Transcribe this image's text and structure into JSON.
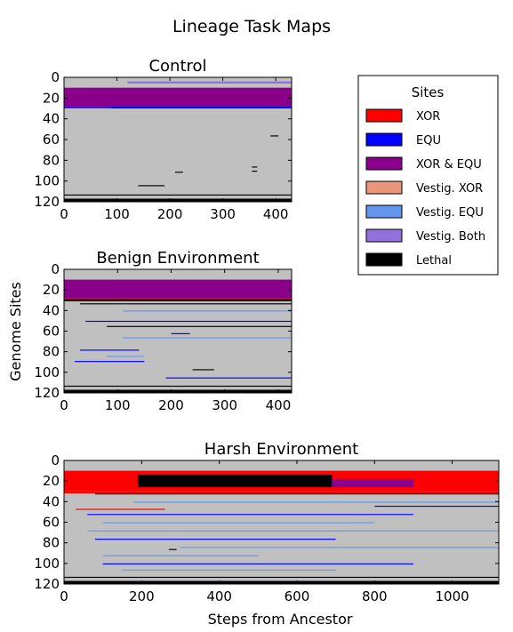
{
  "figure": {
    "suptitle": "Lineage Task Maps",
    "ylabel": "Genome Sites",
    "xlabel": "Steps from Ancestor"
  },
  "legend": {
    "title": "Sites",
    "placement": "right",
    "items": [
      {
        "label": "XOR",
        "color": "#ff0000"
      },
      {
        "label": "EQU",
        "color": "#0000ff"
      },
      {
        "label": "XOR & EQU",
        "color": "#8b008b"
      },
      {
        "label": "Vestig. XOR",
        "color": "#e9967a"
      },
      {
        "label": "Vestig. EQU",
        "color": "#6495ed"
      },
      {
        "label": "Vestig. Both",
        "color": "#9370db"
      },
      {
        "label": "Lethal",
        "color": "#000000"
      }
    ]
  },
  "colors": {
    "background": "#c0c0c0",
    "xor": "#ff0000",
    "equ": "#0000ff",
    "both": "#8b008b",
    "vest_xor": "#e9967a",
    "vest_equ": "#6495ed",
    "vest_both": "#9370db",
    "lethal": "#000000"
  },
  "chart_data": [
    {
      "type": "heatmap",
      "title": "Control",
      "xlim": [
        0,
        430
      ],
      "ylim": [
        120,
        0
      ],
      "xticks": [
        "0",
        "100",
        "200",
        "300",
        "400"
      ],
      "yticks": [
        "0",
        "20",
        "40",
        "60",
        "80",
        "100",
        "120"
      ],
      "bands": [
        {
          "site_start": 10,
          "site_end": 28,
          "step_start": 0,
          "step_end": 430,
          "state": "both"
        },
        {
          "site_start": 28,
          "site_end": 30,
          "step_start": 0,
          "step_end": 430,
          "state": "equ"
        },
        {
          "site_start": 29,
          "site_end": 30,
          "step_start": 0,
          "step_end": 90,
          "state": "xor"
        },
        {
          "site_start": 4,
          "site_end": 6,
          "step_start": 120,
          "step_end": 430,
          "state": "vest_both"
        },
        {
          "site_start": 113,
          "site_end": 114,
          "step_start": 0,
          "step_end": 430,
          "state": "lethal"
        },
        {
          "site_start": 117,
          "site_end": 120,
          "step_start": 0,
          "step_end": 430,
          "state": "lethal"
        },
        {
          "site_start": 104,
          "site_end": 105,
          "step_start": 140,
          "step_end": 190,
          "state": "lethal"
        },
        {
          "site_start": 56,
          "site_end": 57,
          "step_start": 390,
          "step_end": 405,
          "state": "lethal"
        },
        {
          "site_start": 86,
          "site_end": 87,
          "step_start": 355,
          "step_end": 365,
          "state": "lethal"
        },
        {
          "site_start": 90,
          "site_end": 91,
          "step_start": 355,
          "step_end": 365,
          "state": "lethal"
        },
        {
          "site_start": 91,
          "site_end": 92,
          "step_start": 210,
          "step_end": 225,
          "state": "lethal"
        }
      ]
    },
    {
      "type": "heatmap",
      "title": "Benign Environment",
      "xlim": [
        0,
        425
      ],
      "ylim": [
        120,
        0
      ],
      "xticks": [
        "0",
        "100",
        "200",
        "300",
        "400"
      ],
      "yticks": [
        "0",
        "20",
        "40",
        "60",
        "80",
        "100",
        "120"
      ],
      "bands": [
        {
          "site_start": 10,
          "site_end": 28,
          "step_start": 0,
          "step_end": 425,
          "state": "both"
        },
        {
          "site_start": 28,
          "site_end": 29,
          "step_start": 0,
          "step_end": 425,
          "state": "xor"
        },
        {
          "site_start": 29,
          "site_end": 31,
          "step_start": 0,
          "step_end": 425,
          "state": "lethal"
        },
        {
          "site_start": 33,
          "site_end": 34,
          "step_start": 30,
          "step_end": 425,
          "state": "lethal"
        },
        {
          "site_start": 40,
          "site_end": 41,
          "step_start": 110,
          "step_end": 425,
          "state": "vest_equ"
        },
        {
          "site_start": 50,
          "site_end": 51,
          "step_start": 40,
          "step_end": 425,
          "state": "equ"
        },
        {
          "site_start": 55,
          "site_end": 56,
          "step_start": 80,
          "step_end": 425,
          "state": "lethal"
        },
        {
          "site_start": 62,
          "site_end": 63,
          "step_start": 200,
          "step_end": 235,
          "state": "equ"
        },
        {
          "site_start": 66,
          "site_end": 67,
          "step_start": 110,
          "step_end": 425,
          "state": "vest_equ"
        },
        {
          "site_start": 78,
          "site_end": 79,
          "step_start": 30,
          "step_end": 140,
          "state": "equ"
        },
        {
          "site_start": 84,
          "site_end": 85,
          "step_start": 80,
          "step_end": 150,
          "state": "vest_equ"
        },
        {
          "site_start": 89,
          "site_end": 90,
          "step_start": 20,
          "step_end": 150,
          "state": "equ"
        },
        {
          "site_start": 97,
          "site_end": 98,
          "step_start": 240,
          "step_end": 280,
          "state": "lethal"
        },
        {
          "site_start": 105,
          "site_end": 106,
          "step_start": 190,
          "step_end": 425,
          "state": "equ"
        },
        {
          "site_start": 113,
          "site_end": 114,
          "step_start": 0,
          "step_end": 425,
          "state": "lethal"
        },
        {
          "site_start": 117,
          "site_end": 120,
          "step_start": 0,
          "step_end": 425,
          "state": "lethal"
        }
      ]
    },
    {
      "type": "heatmap",
      "title": "Harsh Environment",
      "xlim": [
        0,
        1120
      ],
      "ylim": [
        120,
        0
      ],
      "xticks": [
        "0",
        "200",
        "400",
        "600",
        "800",
        "1000"
      ],
      "yticks": [
        "0",
        "20",
        "40",
        "60",
        "80",
        "100",
        "120"
      ],
      "bands": [
        {
          "site_start": 10,
          "site_end": 30,
          "step_start": 0,
          "step_end": 1120,
          "state": "xor"
        },
        {
          "site_start": 14,
          "site_end": 26,
          "step_start": 190,
          "step_end": 690,
          "state": "lethal"
        },
        {
          "site_start": 18,
          "site_end": 26,
          "step_start": 690,
          "step_end": 900,
          "state": "both"
        },
        {
          "site_start": 30,
          "site_end": 32,
          "step_start": 0,
          "step_end": 1120,
          "state": "xor"
        },
        {
          "site_start": 32,
          "site_end": 33,
          "step_start": 80,
          "step_end": 1120,
          "state": "lethal"
        },
        {
          "site_start": 47,
          "site_end": 48,
          "step_start": 30,
          "step_end": 260,
          "state": "xor"
        },
        {
          "site_start": 40,
          "site_end": 41,
          "step_start": 180,
          "step_end": 1120,
          "state": "vest_equ"
        },
        {
          "site_start": 44,
          "site_end": 45,
          "step_start": 800,
          "step_end": 1120,
          "state": "equ"
        },
        {
          "site_start": 52,
          "site_end": 53,
          "step_start": 60,
          "step_end": 900,
          "state": "equ"
        },
        {
          "site_start": 60,
          "site_end": 61,
          "step_start": 100,
          "step_end": 800,
          "state": "vest_equ"
        },
        {
          "site_start": 68,
          "site_end": 69,
          "step_start": 60,
          "step_end": 1120,
          "state": "vest_equ"
        },
        {
          "site_start": 76,
          "site_end": 77,
          "step_start": 80,
          "step_end": 700,
          "state": "equ"
        },
        {
          "site_start": 84,
          "site_end": 85,
          "step_start": 300,
          "step_end": 1120,
          "state": "vest_equ"
        },
        {
          "site_start": 86,
          "site_end": 87,
          "step_start": 270,
          "step_end": 290,
          "state": "lethal"
        },
        {
          "site_start": 92,
          "site_end": 93,
          "step_start": 100,
          "step_end": 500,
          "state": "vest_equ"
        },
        {
          "site_start": 100,
          "site_end": 101,
          "step_start": 100,
          "step_end": 900,
          "state": "equ"
        },
        {
          "site_start": 106,
          "site_end": 107,
          "step_start": 150,
          "step_end": 700,
          "state": "vest_equ"
        },
        {
          "site_start": 113,
          "site_end": 114,
          "step_start": 0,
          "step_end": 1120,
          "state": "lethal"
        },
        {
          "site_start": 117,
          "site_end": 120,
          "step_start": 0,
          "step_end": 1120,
          "state": "lethal"
        }
      ]
    }
  ]
}
